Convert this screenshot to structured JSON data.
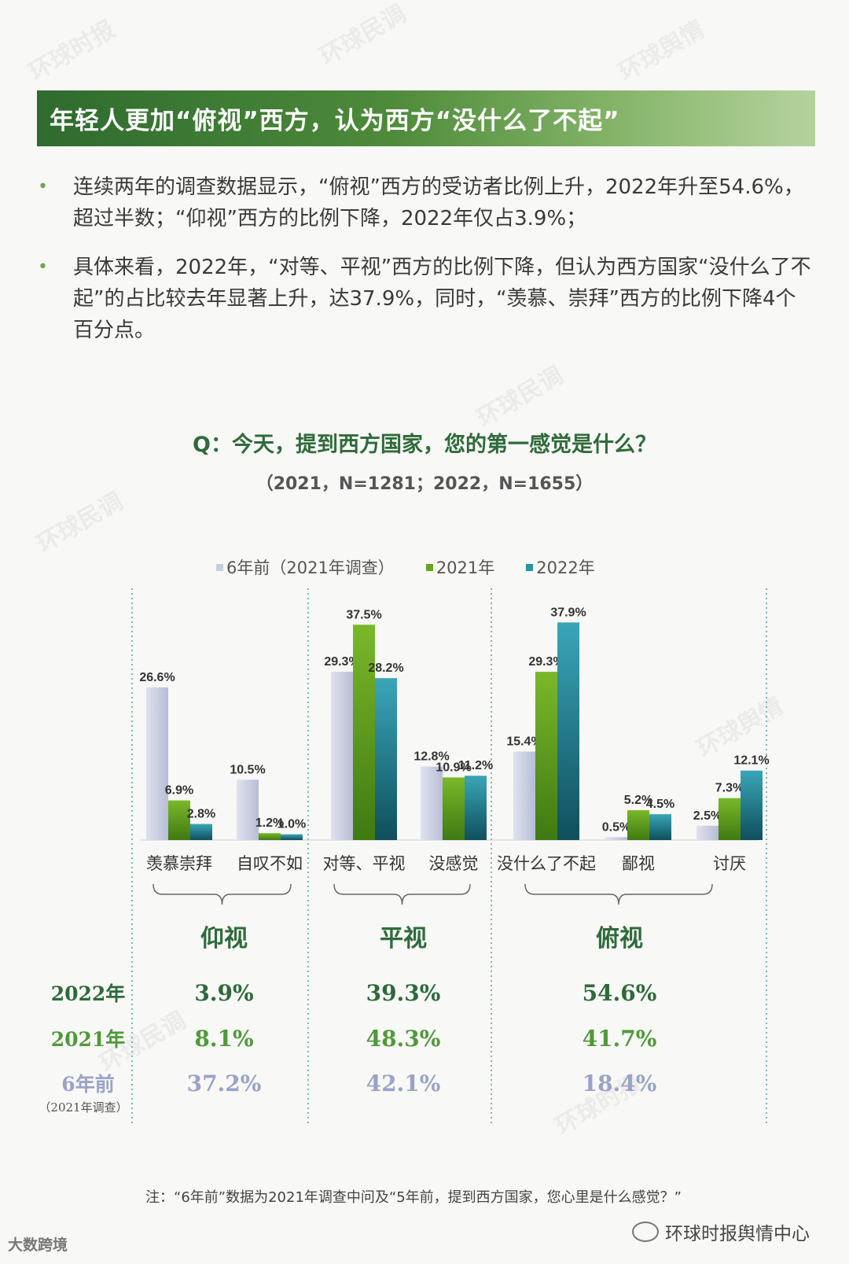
{
  "header": {
    "title": "年轻人更加“俯视”西方，认为西方“没什么了不起”"
  },
  "bullets": [
    {
      "text": "连续两年的调查数据显示，“俯视”西方的受访者比例上升，2022年升至54.6%，超过半数；“仰视”西方的比例下降，2022年仅占3.9%；"
    },
    {
      "text": "具体来看，2022年，“对等、平视”西方的比例下降，但认为西方国家“没什么了不起”的占比较去年显著上升，达37.9%，同时，“羡慕、崇拜”西方的比例下降4个百分点。"
    }
  ],
  "question": "Q：今天，提到西方国家，您的第一感觉是什么？",
  "sample": "（2021，N=1281；2022，N=1655）",
  "colors": {
    "six_years_ago": "#c9cde0",
    "y2021": "#6aa31c",
    "y2022": "#2a93a5",
    "group_label": "#2f6b3a",
    "row_2022": "#2e6a3a",
    "row_2021": "#4f9a3a",
    "row_6y": "#9aa3c8"
  },
  "chart_data": {
    "type": "bar",
    "categories": [
      "羡慕崇拜",
      "自叹不如",
      "对等、平视",
      "没感觉",
      "没什么了不起",
      "鄙视",
      "讨厌"
    ],
    "series": [
      {
        "name": "6年前（2021年调查）",
        "values": [
          26.6,
          10.5,
          29.3,
          12.8,
          15.4,
          0.5,
          2.5
        ]
      },
      {
        "name": "2021年",
        "values": [
          6.9,
          1.2,
          37.5,
          10.9,
          29.3,
          5.2,
          7.3
        ]
      },
      {
        "name": "2022年",
        "values": [
          2.8,
          1.0,
          28.2,
          11.2,
          37.9,
          4.5,
          12.1
        ]
      }
    ],
    "value_labels": [
      [
        "26.6%",
        "10.5%",
        "29.3%",
        "12.8%",
        "15.4%",
        "0.5%",
        "2.5%"
      ],
      [
        "6.9%",
        "1.2%",
        "37.5%",
        "10.9%",
        "29.3%",
        "5.2%",
        "7.3%"
      ],
      [
        "2.8%",
        "1.0%",
        "28.2%",
        "11.2%",
        "37.9%",
        "4.5%",
        "12.1%"
      ]
    ],
    "legend_position": "top",
    "groups": [
      {
        "label": "仰视",
        "categories": [
          "羡慕崇拜",
          "自叹不如"
        ]
      },
      {
        "label": "平视",
        "categories": [
          "对等、平视",
          "没感觉"
        ]
      },
      {
        "label": "俯视",
        "categories": [
          "没什么了不起",
          "鄙视",
          "讨厌"
        ]
      }
    ],
    "summary_rows": [
      {
        "label": "2022年",
        "sublabel": "",
        "values": [
          "3.9%",
          "39.3%",
          "54.6%"
        ]
      },
      {
        "label": "2021年",
        "sublabel": "",
        "values": [
          "8.1%",
          "48.3%",
          "41.7%"
        ]
      },
      {
        "label": "6年前",
        "sublabel": "（2021年调查）",
        "values": [
          "37.2%",
          "42.1%",
          "18.4%"
        ]
      }
    ]
  },
  "footnote": "注：“6年前”数据为2021年调查中问及“5年前，提到西方国家，您心里是什么感觉？”",
  "brand": {
    "right": "环球时报舆情中心",
    "left": "大数跨境"
  }
}
